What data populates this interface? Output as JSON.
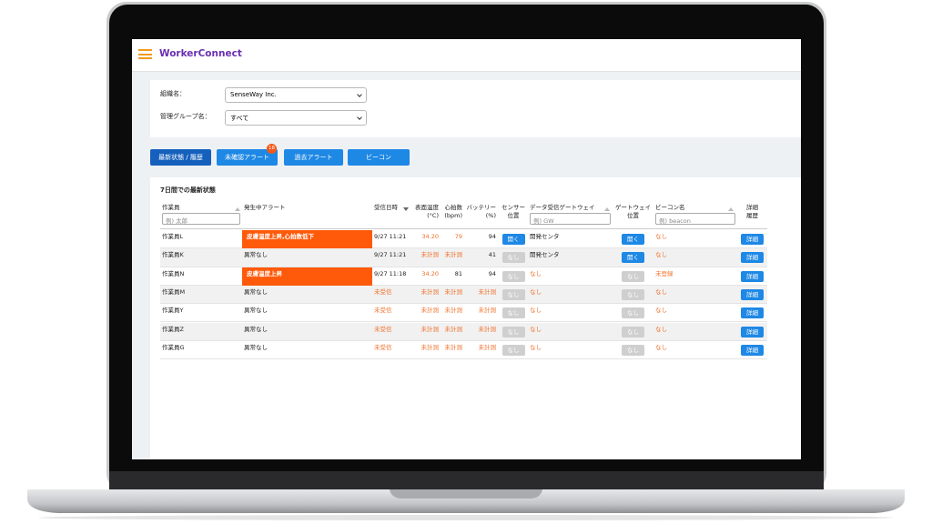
{
  "app": {
    "title": "WorkerConnect"
  },
  "filters": [
    {
      "label": "組織名：",
      "value": "SenseWay Inc."
    },
    {
      "label": "管理グループ名：",
      "value": "すべて"
    }
  ],
  "tabs": [
    {
      "label": "最新状態 / 履歴",
      "color": "#1560bd"
    },
    {
      "label": "未確認アラート",
      "color": "#1e88e5",
      "badge": 18
    },
    {
      "label": "過去アラート",
      "color": "#1e88e5"
    },
    {
      "label": "ビーコン",
      "color": "#1e88e5"
    }
  ],
  "section_title": "7日間での最新状態",
  "table": {
    "headers": [
      [
        "作業員"
      ],
      [
        "発生中アラート"
      ],
      [
        "受信日時"
      ],
      [
        "表面温度",
        "(°C)"
      ],
      [
        "心拍数",
        "(bpm)"
      ],
      [
        "バッテリー",
        "(%)"
      ],
      [
        "センサー",
        "位置"
      ],
      [
        "データ受信ゲートウェイ"
      ],
      [
        "ゲートウェイ",
        "位置"
      ],
      [
        "ビーコン名"
      ],
      [
        "詳細",
        "履歴"
      ]
    ],
    "placeholders": [
      "例) 太郎",
      "例) GW",
      "例) beacon"
    ],
    "rows": [
      {
        "cells": [
          "作業員L",
          {
            "text": "皮膚温度上昇,心拍数低下",
            "bg": "#ff5a0a"
          },
          "9/27 11:21",
          {
            "text": "34.20",
            "color": "#f0702a"
          },
          {
            "text": "79",
            "color": "#f0702a"
          },
          "94",
          {
            "text": "開く",
            "button": "#1e88e5"
          },
          "開発センタ",
          {
            "text": "開く",
            "button": "#1e88e5"
          },
          {
            "text": "なし",
            "color": "#f0702a"
          },
          {
            "text": "詳細",
            "button": "#1e88e5"
          }
        ]
      },
      {
        "cells": [
          "作業員K",
          "異常なし",
          "9/27 11:21",
          {
            "text": "未計測",
            "color": "#f0702a"
          },
          {
            "text": "未計測",
            "color": "#f0702a"
          },
          "41",
          {
            "text": "なし",
            "button": "#cfcfcf"
          },
          "開発センタ",
          {
            "text": "開く",
            "button": "#1e88e5"
          },
          {
            "text": "なし",
            "color": "#f0702a"
          },
          {
            "text": "詳細",
            "button": "#1e88e5"
          }
        ]
      },
      {
        "cells": [
          "作業員N",
          {
            "text": "皮膚温度上昇",
            "bg": "#ff5a0a"
          },
          "9/27 11:18",
          {
            "text": "34.20",
            "color": "#f0702a"
          },
          "81",
          "94",
          {
            "text": "なし",
            "button": "#cfcfcf"
          },
          {
            "text": "なし",
            "color": "#f0702a"
          },
          {
            "text": "なし",
            "button": "#cfcfcf"
          },
          {
            "text": "未登録",
            "color": "#f0702a"
          },
          {
            "text": "詳細",
            "button": "#1e88e5"
          }
        ]
      },
      {
        "cells": [
          "作業員M",
          "異常なし",
          {
            "text": "未受信",
            "color": "#f0702a"
          },
          {
            "text": "未計測",
            "color": "#f0702a"
          },
          {
            "text": "未計測",
            "color": "#f0702a"
          },
          {
            "text": "未計測",
            "color": "#f0702a"
          },
          {
            "text": "なし",
            "button": "#cfcfcf"
          },
          {
            "text": "なし",
            "color": "#f0702a"
          },
          {
            "text": "なし",
            "button": "#cfcfcf"
          },
          {
            "text": "なし",
            "color": "#f0702a"
          },
          {
            "text": "詳細",
            "button": "#1e88e5"
          }
        ]
      },
      {
        "cells": [
          "作業員Y",
          "異常なし",
          {
            "text": "未受信",
            "color": "#f0702a"
          },
          {
            "text": "未計測",
            "color": "#f0702a"
          },
          {
            "text": "未計測",
            "color": "#f0702a"
          },
          {
            "text": "未計測",
            "color": "#f0702a"
          },
          {
            "text": "なし",
            "button": "#cfcfcf"
          },
          {
            "text": "なし",
            "color": "#f0702a"
          },
          {
            "text": "なし",
            "button": "#cfcfcf"
          },
          {
            "text": "なし",
            "color": "#f0702a"
          },
          {
            "text": "詳細",
            "button": "#1e88e5"
          }
        ]
      },
      {
        "cells": [
          "作業員Z",
          "異常なし",
          {
            "text": "未受信",
            "color": "#f0702a"
          },
          {
            "text": "未計測",
            "color": "#f0702a"
          },
          {
            "text": "未計測",
            "color": "#f0702a"
          },
          {
            "text": "未計測",
            "color": "#f0702a"
          },
          {
            "text": "なし",
            "button": "#cfcfcf"
          },
          {
            "text": "なし",
            "color": "#f0702a"
          },
          {
            "text": "なし",
            "button": "#cfcfcf"
          },
          {
            "text": "なし",
            "color": "#f0702a"
          },
          {
            "text": "詳細",
            "button": "#1e88e5"
          }
        ]
      },
      {
        "cells": [
          "作業員G",
          "異常なし",
          {
            "text": "未受信",
            "color": "#f0702a"
          },
          {
            "text": "未計測",
            "color": "#f0702a"
          },
          {
            "text": "未計測",
            "color": "#f0702a"
          },
          {
            "text": "未計測",
            "color": "#f0702a"
          },
          {
            "text": "なし",
            "button": "#cfcfcf"
          },
          {
            "text": "なし",
            "color": "#f0702a"
          },
          {
            "text": "なし",
            "button": "#cfcfcf"
          },
          {
            "text": "なし",
            "color": "#f0702a"
          },
          {
            "text": "詳細",
            "button": "#1e88e5"
          }
        ]
      }
    ]
  }
}
